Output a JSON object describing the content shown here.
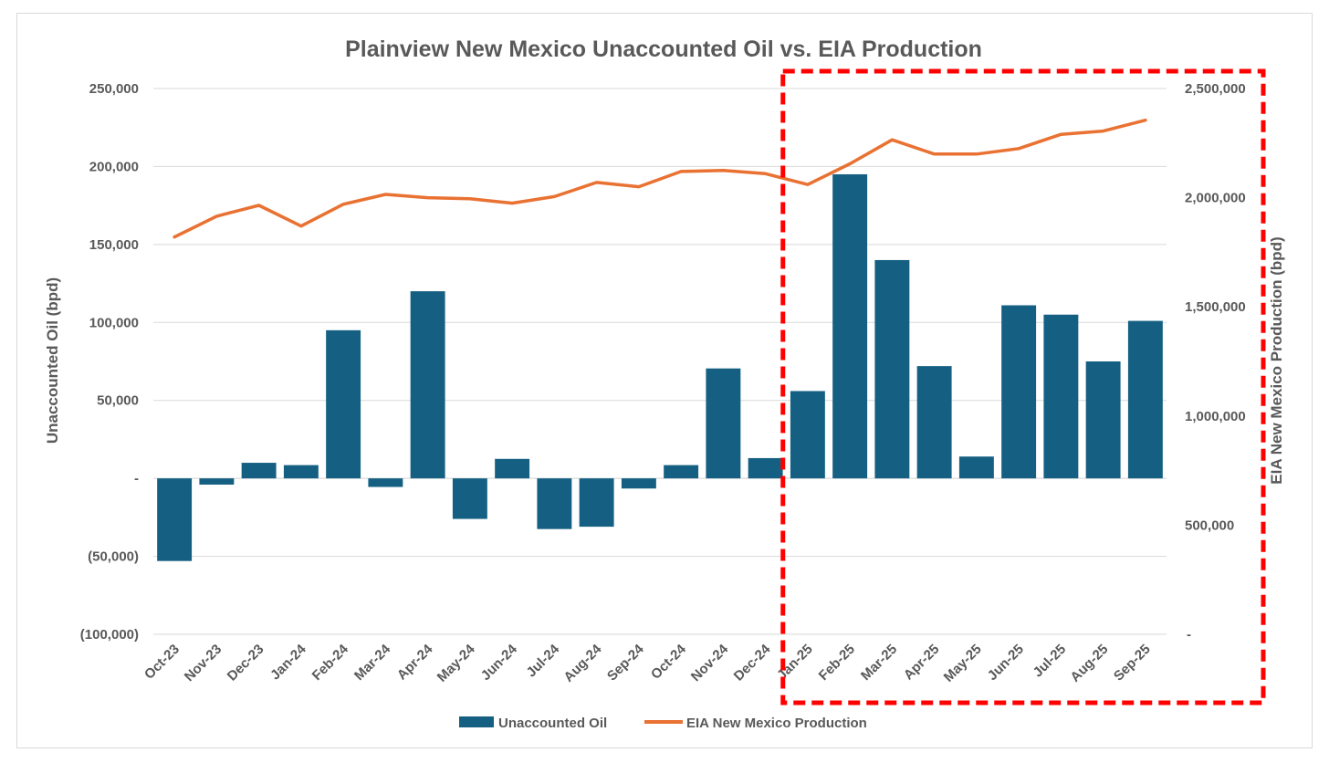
{
  "chart_data": {
    "type": "bar+line",
    "title": "Plainview New Mexico Unaccounted Oil vs. EIA Production",
    "categories": [
      "Oct-23",
      "Nov-23",
      "Dec-23",
      "Jan-24",
      "Feb-24",
      "Mar-24",
      "Apr-24",
      "May-24",
      "Jun-24",
      "Jul-24",
      "Aug-24",
      "Sep-24",
      "Oct-24",
      "Nov-24",
      "Dec-24",
      "Jan-25",
      "Feb-25",
      "Mar-25",
      "Apr-25",
      "May-25",
      "Jun-25",
      "Jul-25",
      "Aug-25",
      "Sep-25"
    ],
    "series": [
      {
        "name": "Unaccounted Oil",
        "type": "bar",
        "axis": "left",
        "color": "#156082",
        "values": [
          -53000,
          -4000,
          10000,
          8500,
          95000,
          -5500,
          120000,
          -26000,
          12500,
          -32500,
          -31000,
          -6500,
          8500,
          70500,
          13000,
          56000,
          195000,
          140000,
          72000,
          14000,
          111000,
          105000,
          75000,
          101000
        ]
      },
      {
        "name": "EIA New Mexico Production",
        "type": "line",
        "axis": "right",
        "color": "#E97132",
        "values": [
          1820000,
          1915000,
          1965000,
          1870000,
          1970000,
          2015000,
          2000000,
          1995000,
          1975000,
          2005000,
          2070000,
          2050000,
          2120000,
          2125000,
          2110000,
          2060000,
          2155000,
          2265000,
          2200000,
          2200000,
          2225000,
          2290000,
          2305000,
          2355000
        ]
      }
    ],
    "left_axis": {
      "label": "Unaccounted Oil (bpd)",
      "ylim": [
        -100000,
        250000
      ],
      "ticks": [
        250000,
        200000,
        150000,
        100000,
        50000,
        0,
        -50000,
        -100000
      ],
      "tick_labels": [
        "250,000",
        "200,000",
        "150,000",
        "100,000",
        "50,000",
        "-",
        "(50,000)",
        "(100,000)"
      ]
    },
    "right_axis": {
      "label": "EIA New Mexico Production (bpd)",
      "ylim": [
        0,
        2500000
      ],
      "ticks": [
        2500000,
        2000000,
        1500000,
        1000000,
        500000,
        0
      ],
      "tick_labels": [
        "2,500,000",
        "2,000,000",
        "1,500,000",
        "1,000,000",
        "500,000",
        "-"
      ]
    },
    "highlight": {
      "style": "red dashed box",
      "color": "#FF0000",
      "from_category": "Jan-25",
      "to_category": "Sep-25"
    },
    "legend": {
      "position": "bottom",
      "entries": [
        "Unaccounted Oil",
        "EIA New Mexico Production"
      ]
    },
    "grid": true
  }
}
